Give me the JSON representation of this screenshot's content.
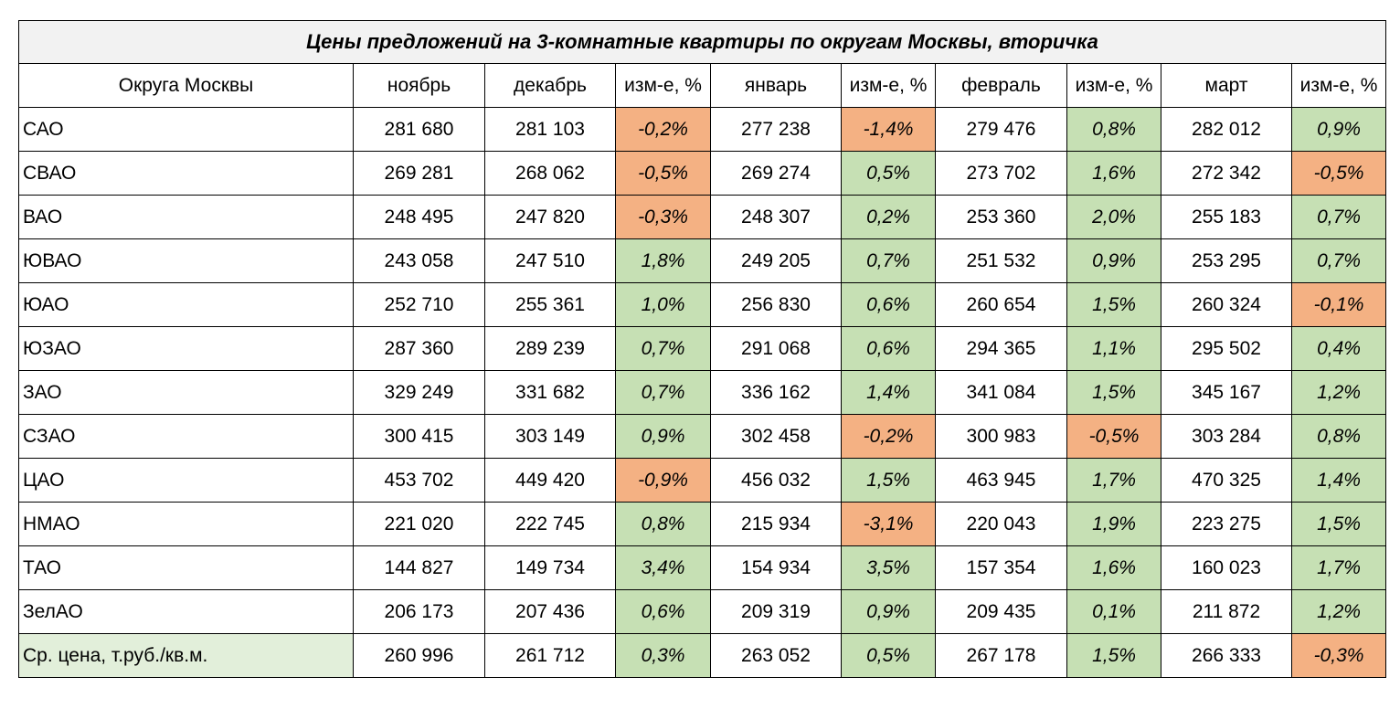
{
  "table": {
    "title": "Цены предложений на 3-комнатные квартиры по округам Москвы, вторичка",
    "headers": [
      "Округа Москвы",
      "ноябрь",
      "декабрь",
      "изм-е, %",
      "январь",
      "изм-е, %",
      "февраль",
      "изм-е, %",
      "март",
      "изм-е, %"
    ],
    "rows": [
      {
        "name": "САО",
        "cells": [
          "281 680",
          "281 103",
          "-0,2%",
          "277 238",
          "-1,4%",
          "279 476",
          "0,8%",
          "282 012",
          "0,9%"
        ]
      },
      {
        "name": "СВАО",
        "cells": [
          "269 281",
          "268 062",
          "-0,5%",
          "269 274",
          "0,5%",
          "273 702",
          "1,6%",
          "272 342",
          "-0,5%"
        ]
      },
      {
        "name": "ВАО",
        "cells": [
          "248 495",
          "247 820",
          "-0,3%",
          "248 307",
          "0,2%",
          "253 360",
          "2,0%",
          "255 183",
          "0,7%"
        ]
      },
      {
        "name": "ЮВАО",
        "cells": [
          "243 058",
          "247 510",
          "1,8%",
          "249 205",
          "0,7%",
          "251 532",
          "0,9%",
          "253 295",
          "0,7%"
        ]
      },
      {
        "name": "ЮАО",
        "cells": [
          "252 710",
          "255 361",
          "1,0%",
          "256 830",
          "0,6%",
          "260 654",
          "1,5%",
          "260 324",
          "-0,1%"
        ]
      },
      {
        "name": "ЮЗАО",
        "cells": [
          "287 360",
          "289 239",
          "0,7%",
          "291 068",
          "0,6%",
          "294 365",
          "1,1%",
          "295 502",
          "0,4%"
        ]
      },
      {
        "name": "ЗАО",
        "cells": [
          "329 249",
          "331 682",
          "0,7%",
          "336 162",
          "1,4%",
          "341 084",
          "1,5%",
          "345 167",
          "1,2%"
        ]
      },
      {
        "name": "СЗАО",
        "cells": [
          "300 415",
          "303 149",
          "0,9%",
          "302 458",
          "-0,2%",
          "300 983",
          "-0,5%",
          "303 284",
          "0,8%"
        ]
      },
      {
        "name": "ЦАО",
        "cells": [
          "453 702",
          "449 420",
          "-0,9%",
          "456 032",
          "1,5%",
          "463 945",
          "1,7%",
          "470 325",
          "1,4%"
        ]
      },
      {
        "name": "НМАО",
        "cells": [
          "221 020",
          "222 745",
          "0,8%",
          "215 934",
          "-3,1%",
          "220 043",
          "1,9%",
          "223 275",
          "1,5%"
        ]
      },
      {
        "name": "ТАО",
        "cells": [
          "144 827",
          "149 734",
          "3,4%",
          "154 934",
          "3,5%",
          "157 354",
          "1,6%",
          "160 023",
          "1,7%"
        ]
      },
      {
        "name": "ЗелАО",
        "cells": [
          "206 173",
          "207 436",
          "0,6%",
          "209 319",
          "0,9%",
          "209 435",
          "0,1%",
          "211 872",
          "1,2%"
        ]
      },
      {
        "name": "Ср. цена, т.руб./кв.м.",
        "cells": [
          "260 996",
          "261 712",
          "0,3%",
          "263 052",
          "0,5%",
          "267 178",
          "1,5%",
          "266 333",
          "-0,3%"
        ]
      }
    ]
  },
  "colors": {
    "positive_fill": "#c6e0b4",
    "negative_fill": "#f4b183",
    "title_fill": "#f2f2f2",
    "average_label_fill": "#e2efda"
  }
}
